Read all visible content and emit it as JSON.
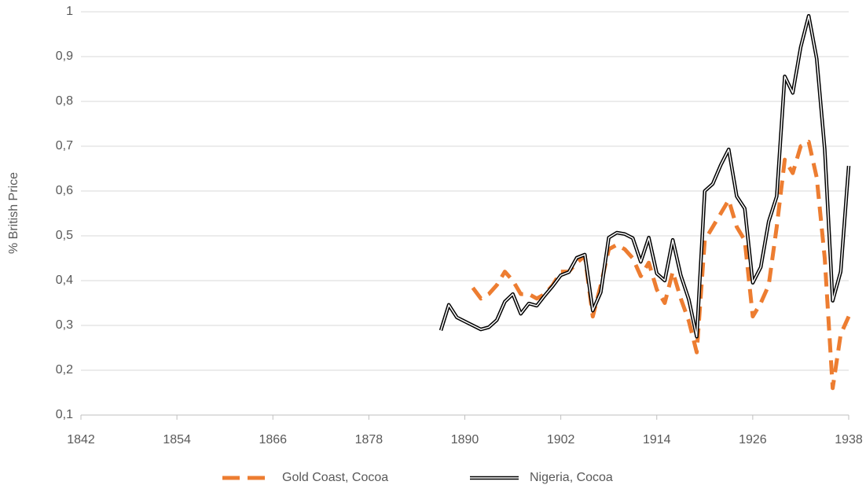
{
  "chart_data": {
    "type": "line",
    "y_label": "% British Price",
    "x": [
      1887,
      1888,
      1889,
      1890,
      1891,
      1892,
      1893,
      1894,
      1895,
      1896,
      1897,
      1898,
      1899,
      1900,
      1901,
      1902,
      1903,
      1904,
      1905,
      1906,
      1907,
      1908,
      1909,
      1910,
      1911,
      1912,
      1913,
      1914,
      1915,
      1916,
      1917,
      1918,
      1919,
      1920,
      1921,
      1922,
      1923,
      1924,
      1925,
      1926,
      1927,
      1928,
      1929,
      1930,
      1931,
      1932,
      1933,
      1934,
      1935,
      1936,
      1937,
      1938
    ],
    "series": [
      {
        "name": "Gold Coast, Cocoa",
        "color": "#ed7d31",
        "values": [
          null,
          null,
          null,
          null,
          0.384,
          0.36,
          0.37,
          0.39,
          0.42,
          0.4,
          0.37,
          0.37,
          0.36,
          0.37,
          0.39,
          0.42,
          0.42,
          0.44,
          0.455,
          0.32,
          0.39,
          0.47,
          0.48,
          0.47,
          0.45,
          0.41,
          0.44,
          0.38,
          0.35,
          0.42,
          0.36,
          0.31,
          0.24,
          0.49,
          0.52,
          0.55,
          0.58,
          0.52,
          0.49,
          0.32,
          0.35,
          0.39,
          0.52,
          0.67,
          0.64,
          0.7,
          0.71,
          0.63,
          0.45,
          0.16,
          0.28,
          0.32
        ]
      },
      {
        "name": "Nigeria, Cocoa",
        "color": "#000000",
        "values": [
          0.289,
          0.346,
          0.318,
          0.309,
          0.3,
          0.291,
          0.296,
          0.312,
          0.353,
          0.37,
          0.326,
          0.349,
          0.344,
          0.367,
          0.388,
          0.412,
          0.419,
          0.451,
          0.458,
          0.333,
          0.374,
          0.496,
          0.507,
          0.504,
          0.495,
          0.442,
          0.496,
          0.416,
          0.4,
          0.491,
          0.412,
          0.358,
          0.275,
          0.6,
          0.616,
          0.658,
          0.693,
          0.588,
          0.561,
          0.395,
          0.43,
          0.532,
          0.588,
          0.856,
          0.819,
          0.921,
          0.991,
          0.895,
          0.693,
          0.355,
          0.42,
          0.656
        ]
      }
    ],
    "xlim": [
      1842,
      1938
    ],
    "xticks": [
      1842,
      1854,
      1866,
      1878,
      1890,
      1902,
      1914,
      1926,
      1938
    ],
    "ylim": [
      0.1,
      1
    ],
    "yticks": [
      {
        "value": 0.1,
        "label": "0,1"
      },
      {
        "value": 0.2,
        "label": "0,2"
      },
      {
        "value": 0.3,
        "label": "0,3"
      },
      {
        "value": 0.4,
        "label": "0,4"
      },
      {
        "value": 0.5,
        "label": "0,5"
      },
      {
        "value": 0.6,
        "label": "0,6"
      },
      {
        "value": 0.7,
        "label": "0,7"
      },
      {
        "value": 0.8,
        "label": "0,8"
      },
      {
        "value": 0.9,
        "label": "0,9"
      },
      1
    ],
    "grid": true,
    "legend": "bottom"
  }
}
